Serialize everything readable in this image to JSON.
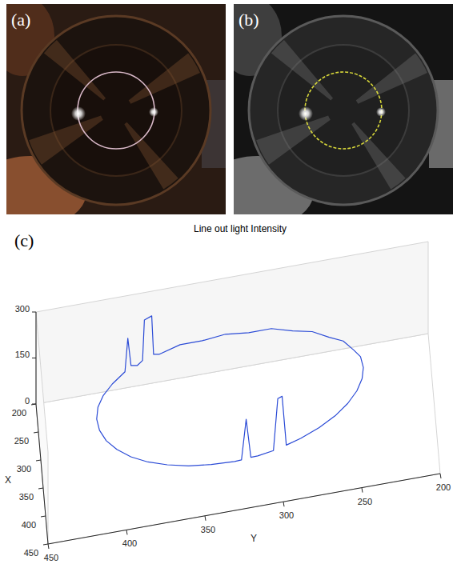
{
  "panel_labels": [
    "(a)",
    "(b)",
    "(c)"
  ],
  "chart_data": {
    "type": "line3d",
    "title": "Line out light Intensity",
    "xlabel": "X",
    "ylabel": "Y",
    "color": "#2b4bd6",
    "xlim": [
      200,
      450
    ],
    "ylim": [
      200,
      450
    ],
    "zlim": [
      0,
      300
    ],
    "xticks": [
      200,
      250,
      300,
      350,
      400,
      450
    ],
    "yticks": [
      200,
      250,
      300,
      350,
      400,
      450
    ],
    "zticks": [
      0,
      150,
      300
    ],
    "x": [
      415,
      414.9,
      414.6,
      414.3,
      413.6,
      410.8,
      409.8,
      408.7,
      407.4,
      402.3,
      392.8,
      381.1,
      367.5,
      352.5,
      336.5,
      320,
      303.5,
      287.5,
      272.5,
      258.9,
      247.2,
      237.7,
      230.7,
      226.4,
      225,
      226.4,
      230.7,
      237.7,
      240.3,
      241.2,
      245.1,
      246.2,
      249.4,
      254.0,
      256.4,
      258.9,
      272.5,
      287.5,
      303.5,
      320,
      336.5,
      352.5,
      367.5,
      381.1,
      392.8,
      402.3,
      409.3,
      413.6,
      415
    ],
    "y": [
      330,
      325.6,
      322.6,
      319.6,
      315.2,
      305.1,
      302.3,
      299.5,
      296.8,
      287.5,
      275.4,
      264.9,
      256.4,
      250.1,
      246.3,
      245,
      246.3,
      250.1,
      256.4,
      264.9,
      275.4,
      287.5,
      300.9,
      315.2,
      330,
      344.8,
      359.1,
      372.5,
      376.3,
      377.5,
      382.3,
      383.5,
      386.9,
      391.1,
      393.2,
      395.1,
      403.6,
      409.9,
      413.7,
      415,
      413.7,
      409.9,
      403.6,
      395.1,
      384.6,
      372.5,
      359.1,
      344.8,
      330
    ],
    "z": [
      95,
      96,
      225,
      98,
      97,
      100,
      265,
      268,
      104,
      108,
      115,
      122,
      130,
      138,
      145,
      150,
      156,
      152,
      160,
      155,
      162,
      158,
      165,
      157,
      163,
      158,
      166,
      160,
      168,
      296,
      294,
      165,
      158,
      170,
      265,
      162,
      155,
      150,
      145,
      138,
      130,
      122,
      115,
      108,
      103,
      100,
      97,
      96,
      95
    ]
  }
}
